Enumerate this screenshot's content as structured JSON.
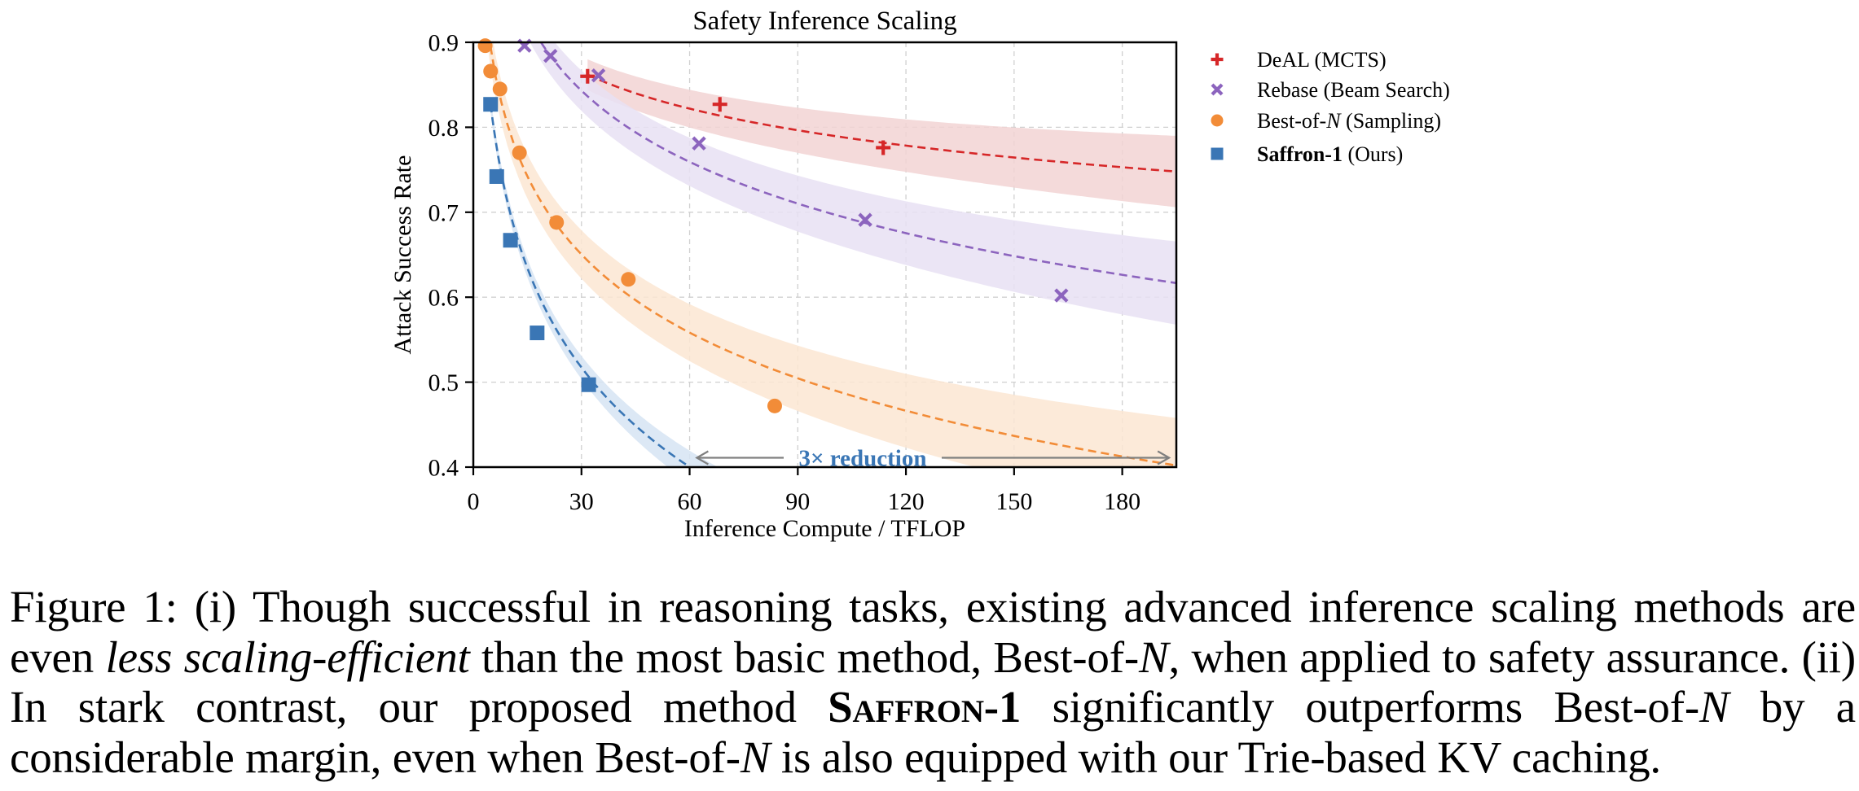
{
  "chart_data": {
    "type": "scatter",
    "title": "Safety Inference Scaling",
    "xlabel": "Inference Compute / TFLOP",
    "ylabel": "Attack Success Rate",
    "xlim": [
      0,
      195
    ],
    "ylim": [
      0.4,
      0.9
    ],
    "xticks": [
      0,
      30,
      60,
      90,
      120,
      150,
      180
    ],
    "xtick_labels": [
      "0",
      "30",
      "60",
      "90",
      "120",
      "150",
      "180"
    ],
    "yticks": [
      0.4,
      0.5,
      0.6,
      0.7,
      0.8,
      0.9
    ],
    "ytick_labels": [
      "0.4",
      "0.5",
      "0.6",
      "0.7",
      "0.8",
      "0.9"
    ],
    "grid": true,
    "legend_position": "outside-top-right",
    "series": [
      {
        "name": "DeAL (MCTS)",
        "legend_prefix": "DeAL",
        "legend_suffix": " (MCTS)",
        "marker": "plus",
        "color": "#d62728",
        "band_color": "#f2d4d4",
        "x": [
          31.7,
          68.4,
          113.7
        ],
        "y": [
          0.86,
          0.827,
          0.776
        ],
        "fit": {
          "model": "a - b*ln(x/x0)",
          "a": 0.862,
          "b": 0.0628,
          "x0": 31.7,
          "xmin": 31.7,
          "xmax": 195,
          "band_half_width": 0.03
        }
      },
      {
        "name": "Rebase (Beam Search)",
        "legend_prefix": "Rebase",
        "legend_suffix": " (Beam Search)",
        "marker": "x",
        "color": "#8c64be",
        "band_color": "#e7e0f3",
        "x": [
          14.2,
          21.4,
          34.7,
          62.6,
          108.7,
          163.1
        ],
        "y": [
          0.896,
          0.884,
          0.861,
          0.781,
          0.691,
          0.602
        ],
        "fit": {
          "model": "a - b*ln(x/x0)",
          "a": 0.884,
          "b": 0.121,
          "x0": 21.4,
          "xmin": 12,
          "xmax": 195,
          "band_half_width": 0.035
        }
      },
      {
        "name": "Best-of-N (Sampling)",
        "legend_prefix": "Best-of-",
        "legend_italic": "N",
        "legend_suffix": " (Sampling)",
        "marker": "circle",
        "color": "#f28c38",
        "band_color": "#fce6d2",
        "x": [
          3.3,
          4.8,
          7.4,
          12.8,
          23.1,
          43.0,
          83.6
        ],
        "y": [
          0.896,
          0.866,
          0.845,
          0.77,
          0.688,
          0.621,
          0.472
        ],
        "fit": {
          "model": "a - b*ln(x/x0)",
          "a": 0.685,
          "b": 0.1327,
          "x0": 23.1,
          "xmin": 3,
          "xmax": 195,
          "band_half_width": 0.04
        }
      },
      {
        "name": "Saffron-1 (Ours)",
        "legend_bold": "Saffron-1",
        "legend_suffix": " (Ours)",
        "marker": "square",
        "color": "#3a76b5",
        "band_color": "#d6e4f3",
        "x": [
          4.8,
          6.5,
          10.3,
          17.7,
          32.0
        ],
        "y": [
          0.827,
          0.742,
          0.667,
          0.558,
          0.497
        ],
        "fit": {
          "model": "a - b*ln(x/x0)",
          "a": 0.827,
          "b": 0.169,
          "x0": 4.8,
          "xmin": 4.8,
          "xmax": 70,
          "band_half_width": 0.015
        }
      }
    ],
    "annotation": {
      "text": "3× reduction",
      "color": "#3a76b5",
      "arrow_color": "#808080",
      "arrow_left_x": 62,
      "arrow_right_x": 193,
      "arrow_y": 0.411
    }
  },
  "caption": {
    "p1": "Figure 1: (i) Though successful in reasoning tasks, existing advanced inference scaling methods are even ",
    "p1_italic": "less scaling-efficient",
    "p2": " than the most basic method, Best-of-",
    "n1": "N",
    "p3": ", when applied to safety assurance. (ii) In stark contrast, our proposed method ",
    "method": "Saffron-1",
    "p4": " significantly outperforms Best-of-",
    "n2": "N",
    "p5": " by a considerable margin, even when Best-of-",
    "n3": "N",
    "p6": " is also equipped with our Trie-based KV caching."
  }
}
